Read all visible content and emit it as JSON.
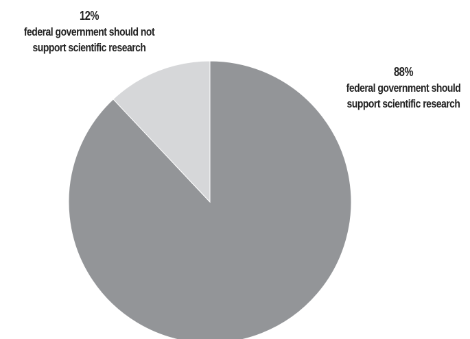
{
  "chart_data": {
    "type": "pie",
    "title": "",
    "slices": [
      {
        "value": 88,
        "percent_label": "88%",
        "label_line1": "federal government should",
        "label_line2": "support scientific research",
        "color": "#939598"
      },
      {
        "value": 12,
        "percent_label": "12%",
        "label_line1": "federal government should not",
        "label_line2": "support scientific research",
        "color": "#d6d7d9"
      }
    ],
    "start_angle_deg": 0,
    "direction": "clockwise",
    "slice_border_color": "#ffffff"
  }
}
